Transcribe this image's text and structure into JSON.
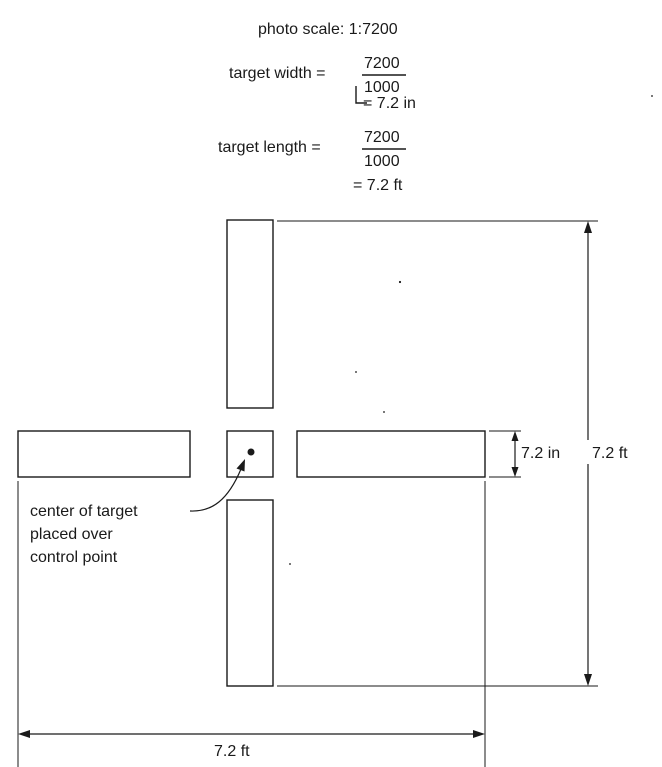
{
  "header": {
    "photo_scale": "photo scale: 1:7200",
    "width_label": "target width =",
    "width_numerator": "7200",
    "width_denominator": "1000",
    "width_result": "= 7.2 in",
    "length_label": "target length =",
    "length_numerator": "7200",
    "length_denominator": "1000",
    "length_result": "= 7.2 ft"
  },
  "dimensions": {
    "bar_width": "7.2 in",
    "overall_height": "7.2 ft",
    "overall_width": "7.2 ft"
  },
  "annotation": {
    "line1": "center of target",
    "line2": "placed over",
    "line3": "control point"
  },
  "colors": {
    "ink": "#1a1a1a",
    "background": "#ffffff"
  }
}
